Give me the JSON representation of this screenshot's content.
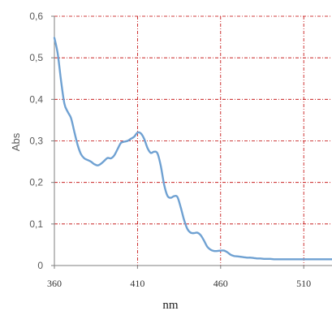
{
  "chart_data": {
    "type": "line",
    "title": "",
    "xlabel": "nm",
    "ylabel": "Abs",
    "xlim": [
      360,
      527
    ],
    "ylim": [
      0,
      0.6
    ],
    "x_ticks": [
      360,
      410,
      460,
      510
    ],
    "x_tick_labels": [
      "360",
      "410",
      "460",
      "510"
    ],
    "y_ticks": [
      0,
      0.1,
      0.2,
      0.3,
      0.4,
      0.5,
      0.6
    ],
    "y_tick_labels": [
      "0",
      "0,1",
      "0,2",
      "0,3",
      "0,4",
      "0,5",
      "0,6"
    ],
    "grid": true,
    "grid_color": "#c00000",
    "axis_color": "#7f7f7f",
    "series": [
      {
        "color": "#6fa1d2",
        "x": [
          360,
          362,
          364,
          366,
          368,
          370,
          372,
          374,
          376,
          378,
          380,
          382,
          384,
          386,
          388,
          390,
          392,
          394,
          396,
          398,
          400,
          402,
          404,
          406,
          408,
          410,
          412,
          414,
          416,
          418,
          420,
          422,
          424,
          426,
          428,
          430,
          432,
          434,
          436,
          438,
          440,
          442,
          444,
          446,
          448,
          450,
          452,
          454,
          456,
          458,
          460,
          462,
          464,
          466,
          468,
          470,
          472,
          474,
          476,
          478,
          480,
          482,
          484,
          486,
          488,
          490,
          492,
          494,
          496,
          498,
          500,
          502,
          504,
          506,
          508,
          510,
          512,
          514,
          516,
          518,
          520,
          522,
          524,
          527
        ],
        "y": [
          0.548,
          0.51,
          0.445,
          0.39,
          0.37,
          0.355,
          0.322,
          0.29,
          0.268,
          0.258,
          0.254,
          0.25,
          0.244,
          0.241,
          0.245,
          0.252,
          0.259,
          0.258,
          0.265,
          0.28,
          0.295,
          0.298,
          0.3,
          0.305,
          0.31,
          0.32,
          0.318,
          0.305,
          0.283,
          0.271,
          0.274,
          0.27,
          0.24,
          0.195,
          0.168,
          0.163,
          0.167,
          0.165,
          0.14,
          0.11,
          0.088,
          0.079,
          0.078,
          0.079,
          0.073,
          0.06,
          0.045,
          0.038,
          0.035,
          0.035,
          0.036,
          0.036,
          0.032,
          0.026,
          0.023,
          0.022,
          0.021,
          0.02,
          0.019,
          0.019,
          0.018,
          0.017,
          0.017,
          0.016,
          0.016,
          0.016,
          0.015,
          0.015,
          0.015,
          0.015,
          0.015,
          0.015,
          0.015,
          0.015,
          0.015,
          0.015,
          0.015,
          0.015,
          0.015,
          0.015,
          0.015,
          0.015,
          0.015,
          0.015
        ]
      }
    ]
  }
}
